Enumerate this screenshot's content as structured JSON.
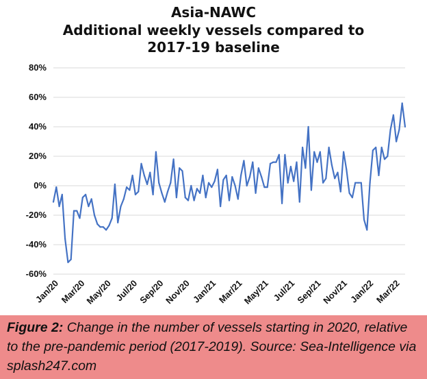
{
  "colors": {
    "line": "#4472C4",
    "gridline": "#D9D9D9",
    "caption_bg": "#EE8B8B",
    "text": "#111111"
  },
  "chart": {
    "title_lines": [
      "Asia-NAWC",
      "Additional  weekly vessels compared to",
      "2017-19 baseline"
    ]
  },
  "caption": {
    "label": "Figure 2:",
    "text": "Change in the number of vessels starting in 2020, relative to the pre-pandemic period (2017-2019). Source: Sea-Intelligence via splash247.com"
  },
  "chart_data": {
    "type": "line",
    "title": "Asia-NAWC Additional  weekly vessels compared to 2017-19 baseline",
    "xlabel": "",
    "ylabel": "",
    "ylim": [
      -60,
      80
    ],
    "y_ticks": [
      -60,
      -40,
      -20,
      0,
      20,
      40,
      60,
      80
    ],
    "y_tick_labels": [
      "-60%",
      "-40%",
      "-20%",
      "0%",
      "20%",
      "40%",
      "60%",
      "80%"
    ],
    "x_tick_labels": [
      "Jan/20",
      "Mar/20",
      "May/20",
      "Jul/20",
      "Sep/20",
      "Nov/20",
      "Jan/21",
      "Mar/21",
      "May/21",
      "Jul/21",
      "Sep/21",
      "Nov/21",
      "Jan/22",
      "Mar/22"
    ],
    "grid": "horizontal",
    "series": [
      {
        "values": [
          -11,
          -1,
          -14,
          -6,
          -36,
          -52,
          -50,
          -17,
          -17,
          -22,
          -8,
          -6,
          -14,
          -9,
          -20,
          -26,
          -28,
          -28,
          -30,
          -27,
          -22,
          1,
          -25,
          -14,
          -9,
          -1,
          -3,
          7,
          -6,
          -4,
          15,
          7,
          1,
          9,
          -6,
          23,
          2,
          -5,
          -11,
          -4,
          2,
          18,
          -8,
          12,
          10,
          -8,
          -10,
          0,
          -10,
          -2,
          -5,
          7,
          -8,
          2,
          -1,
          3,
          11,
          -14,
          4,
          7,
          -10,
          6,
          0,
          -9,
          7,
          17,
          0,
          6,
          16,
          -5,
          12,
          6,
          -1,
          -1,
          15,
          16,
          16,
          21,
          -12,
          21,
          2,
          13,
          3,
          16,
          -11,
          26,
          12,
          40,
          -3,
          23,
          16,
          23,
          2,
          5,
          26,
          14,
          5,
          9,
          -4,
          23,
          11,
          -5,
          -8,
          2,
          2,
          2,
          -23,
          -30,
          2,
          24,
          26,
          7,
          26,
          18,
          20,
          38,
          48,
          30,
          38,
          56,
          40
        ]
      }
    ]
  }
}
